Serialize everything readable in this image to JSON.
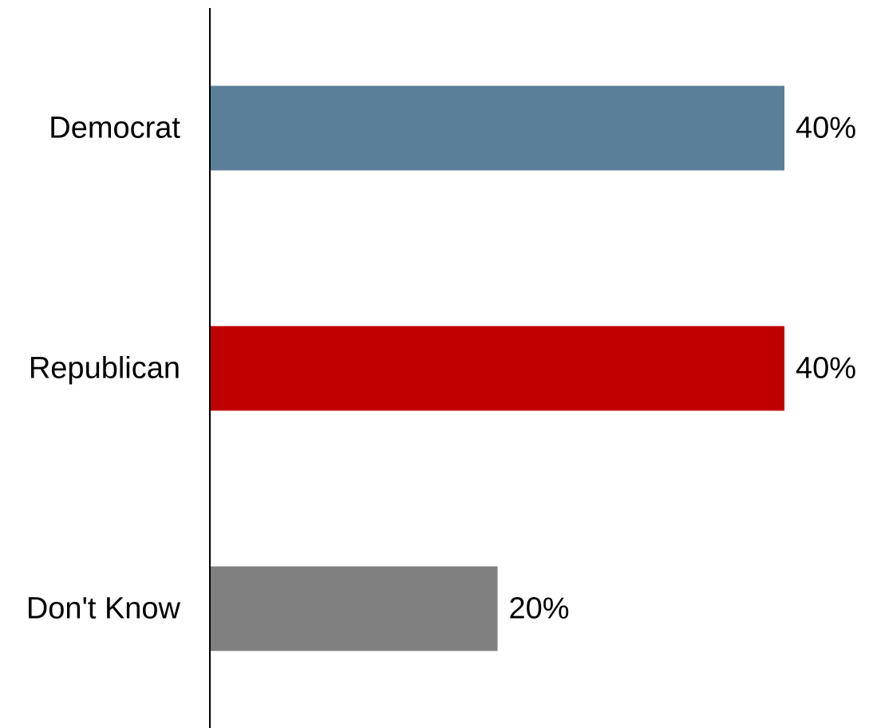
{
  "chart_data": {
    "type": "bar",
    "orientation": "horizontal",
    "title": "",
    "xlabel": "",
    "ylabel": "",
    "categories": [
      "Democrat",
      "Republican",
      "Don't Know"
    ],
    "values": [
      40,
      40,
      20
    ],
    "value_labels": [
      "40%",
      "40%",
      "20%"
    ],
    "colors": [
      "#5b7f99",
      "#c00000",
      "#808080"
    ],
    "xlim": [
      0,
      40
    ],
    "grid": false,
    "legend": "none"
  }
}
